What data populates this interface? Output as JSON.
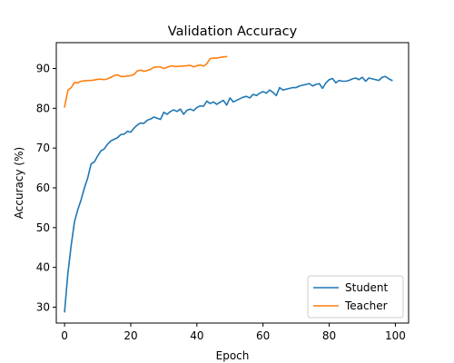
{
  "chart_data": {
    "type": "line",
    "title": "Validation Accuracy",
    "xlabel": "Epoch",
    "ylabel": "Accuracy (%)",
    "xlim": [
      -2.5,
      104
    ],
    "ylim": [
      26,
      96.5
    ],
    "xticks": [
      0,
      20,
      40,
      60,
      80,
      100
    ],
    "yticks": [
      30,
      40,
      50,
      60,
      70,
      80,
      90
    ],
    "grid": false,
    "legend_position": "lower-right",
    "series": [
      {
        "name": "Student",
        "color": "#1f77b4",
        "x": [
          0,
          1,
          2,
          3,
          4,
          5,
          6,
          7,
          8,
          9,
          10,
          11,
          12,
          13,
          14,
          15,
          16,
          17,
          18,
          19,
          20,
          21,
          22,
          23,
          24,
          25,
          26,
          27,
          28,
          29,
          30,
          31,
          32,
          33,
          34,
          35,
          36,
          37,
          38,
          39,
          40,
          41,
          42,
          43,
          44,
          45,
          46,
          47,
          48,
          49,
          50,
          51,
          52,
          53,
          54,
          55,
          56,
          57,
          58,
          59,
          60,
          61,
          62,
          63,
          64,
          65,
          66,
          67,
          68,
          69,
          70,
          71,
          72,
          73,
          74,
          75,
          76,
          77,
          78,
          79,
          80,
          81,
          82,
          83,
          84,
          85,
          86,
          87,
          88,
          89,
          90,
          91,
          92,
          93,
          94,
          95,
          96,
          97,
          98,
          99
        ],
        "values": [
          28.8,
          38.5,
          45.5,
          51.5,
          54.5,
          57.0,
          60.0,
          62.5,
          66.0,
          66.5,
          68.0,
          69.3,
          69.8,
          71.0,
          71.8,
          72.2,
          72.6,
          73.4,
          73.5,
          74.2,
          74.0,
          75.0,
          75.8,
          76.3,
          76.2,
          77.0,
          77.3,
          77.8,
          77.5,
          77.2,
          79.0,
          78.5,
          79.2,
          79.6,
          79.2,
          79.8,
          78.5,
          79.5,
          79.8,
          79.4,
          80.2,
          80.6,
          80.5,
          81.8,
          81.2,
          81.6,
          81.0,
          81.5,
          82.0,
          80.8,
          82.6,
          81.6,
          82.0,
          82.4,
          82.8,
          83.0,
          82.6,
          83.5,
          83.2,
          83.8,
          84.2,
          83.8,
          84.6,
          84.0,
          83.2,
          85.2,
          84.6,
          84.8,
          85.0,
          85.2,
          85.2,
          85.6,
          85.8,
          86.0,
          86.2,
          85.6,
          86.0,
          86.2,
          85.0,
          86.4,
          87.2,
          87.5,
          86.4,
          87.0,
          86.8,
          86.8,
          87.0,
          87.4,
          87.6,
          87.2,
          87.8,
          86.8,
          87.6,
          87.4,
          87.2,
          87.0,
          87.8,
          88.0,
          87.4,
          87.0
        ]
      },
      {
        "name": "Teacher",
        "color": "#ff7f0e",
        "x": [
          0,
          1,
          2,
          3,
          4,
          5,
          6,
          7,
          8,
          9,
          10,
          11,
          12,
          13,
          14,
          15,
          16,
          17,
          18,
          19,
          20,
          21,
          22,
          23,
          24,
          25,
          26,
          27,
          28,
          29,
          30,
          31,
          32,
          33,
          34,
          35,
          36,
          37,
          38,
          39,
          40,
          41,
          42,
          43,
          44,
          45,
          46,
          47,
          48,
          49
        ],
        "values": [
          80.3,
          84.5,
          85.2,
          86.5,
          86.4,
          86.8,
          86.9,
          87.0,
          87.0,
          87.1,
          87.3,
          87.3,
          87.2,
          87.4,
          87.8,
          88.2,
          88.4,
          88.0,
          88.0,
          88.1,
          88.2,
          88.5,
          89.4,
          89.6,
          89.3,
          89.5,
          89.8,
          90.3,
          90.4,
          90.4,
          90.0,
          90.3,
          90.6,
          90.6,
          90.5,
          90.6,
          90.6,
          90.7,
          90.8,
          90.4,
          90.7,
          90.9,
          90.6,
          91.2,
          92.5,
          92.6,
          92.6,
          92.8,
          92.9,
          93.0
        ]
      }
    ]
  }
}
